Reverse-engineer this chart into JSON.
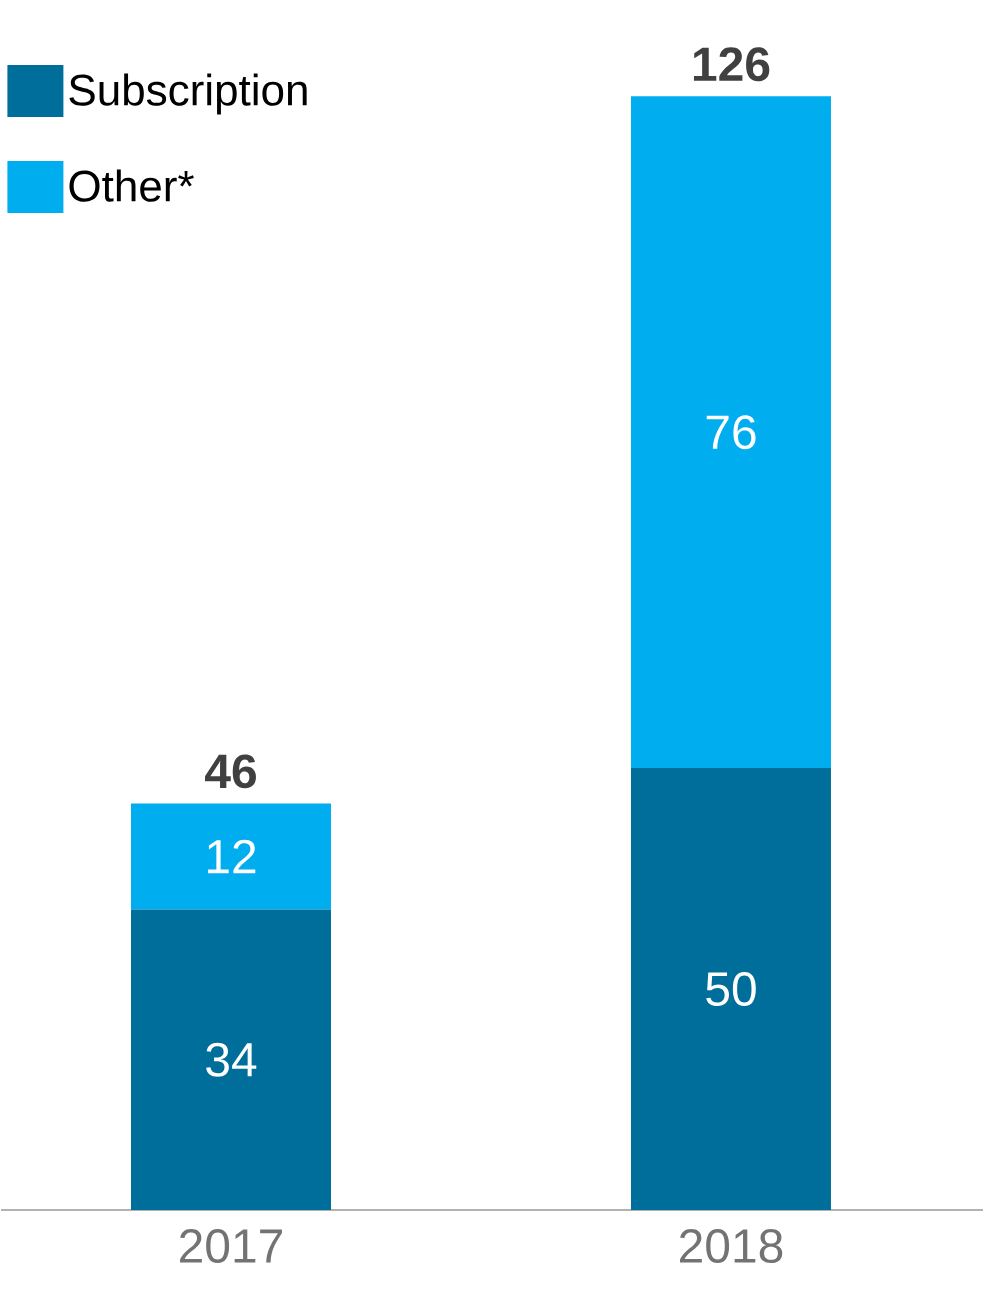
{
  "chart_data": {
    "type": "bar",
    "stacked": true,
    "categories": [
      "2017",
      "2018"
    ],
    "series": [
      {
        "name": "Subscription",
        "color": "#006e9a",
        "values": [
          34,
          50
        ]
      },
      {
        "name": "Other*",
        "color": "#00adef",
        "values": [
          12,
          76
        ]
      }
    ],
    "data_labels": true,
    "totals": [
      "46",
      "126"
    ],
    "legend": "top left"
  }
}
